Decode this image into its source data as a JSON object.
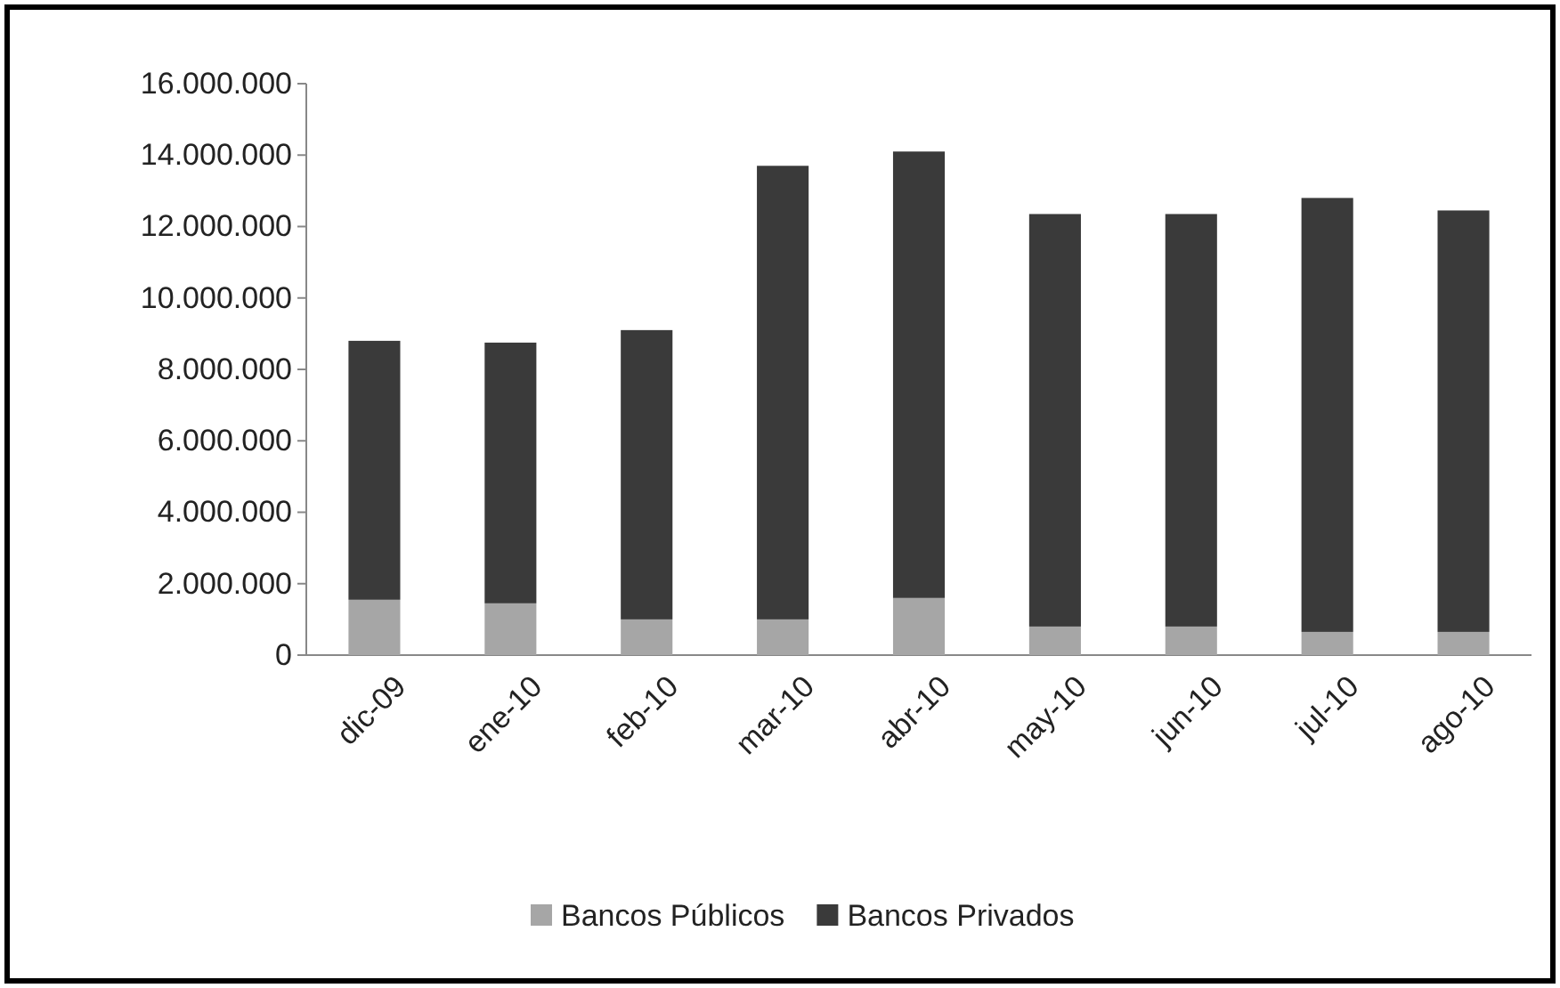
{
  "chart_data": {
    "type": "bar",
    "stacked": true,
    "categories": [
      "dic-09",
      "ene-10",
      "feb-10",
      "mar-10",
      "abr-10",
      "may-10",
      "jun-10",
      "jul-10",
      "ago-10"
    ],
    "series": [
      {
        "name": "Bancos Públicos",
        "color": "#a6a6a6",
        "values": [
          1550000,
          1450000,
          1000000,
          1000000,
          1600000,
          800000,
          800000,
          650000,
          650000
        ]
      },
      {
        "name": "Bancos Privados",
        "color": "#3a3a3a",
        "values": [
          7250000,
          7300000,
          8100000,
          12700000,
          12500000,
          11550000,
          11550000,
          12150000,
          11800000
        ]
      }
    ],
    "ylim": [
      0,
      16000000
    ],
    "yticks": [
      {
        "value": 0,
        "label": "0"
      },
      {
        "value": 2000000,
        "label": "2.000.000"
      },
      {
        "value": 4000000,
        "label": "4.000.000"
      },
      {
        "value": 6000000,
        "label": "6.000.000"
      },
      {
        "value": 8000000,
        "label": "8.000.000"
      },
      {
        "value": 10000000,
        "label": "10.000.000"
      },
      {
        "value": 12000000,
        "label": "12.000.000"
      },
      {
        "value": 14000000,
        "label": "14.000.000"
      },
      {
        "value": 16000000,
        "label": "16.000.000"
      }
    ],
    "grid": false,
    "legend": "bottom"
  }
}
